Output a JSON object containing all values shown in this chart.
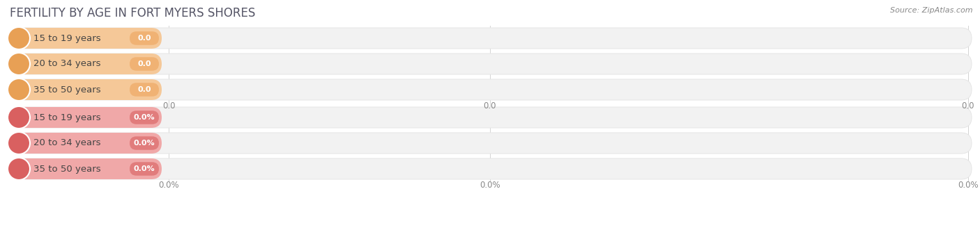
{
  "title": "Fertility by Age in Fort Myers Shores",
  "source": "Source: ZipAtlas.com",
  "top_group": {
    "labels": [
      "15 to 19 years",
      "20 to 34 years",
      "35 to 50 years"
    ],
    "values": [
      0.0,
      0.0,
      0.0
    ],
    "bar_fill_color": "#f5c898",
    "circle_color": "#e8a055",
    "badge_color": "#f0b070",
    "value_suffix": ""
  },
  "bottom_group": {
    "labels": [
      "15 to 19 years",
      "20 to 34 years",
      "35 to 50 years"
    ],
    "values": [
      0.0,
      0.0,
      0.0
    ],
    "bar_fill_color": "#f0a8a8",
    "circle_color": "#d96060",
    "badge_color": "#e07878",
    "value_suffix": "%"
  },
  "bg_color": "#ffffff",
  "bar_bg_color": "#f2f2f2",
  "bar_bg_edge_color": "#e5e5e5",
  "title_fontsize": 12,
  "label_fontsize": 9.5,
  "tick_fontsize": 8.5,
  "source_fontsize": 8,
  "title_color": "#555566",
  "tick_color": "#888888",
  "label_color": "#444444",
  "source_color": "#888888"
}
